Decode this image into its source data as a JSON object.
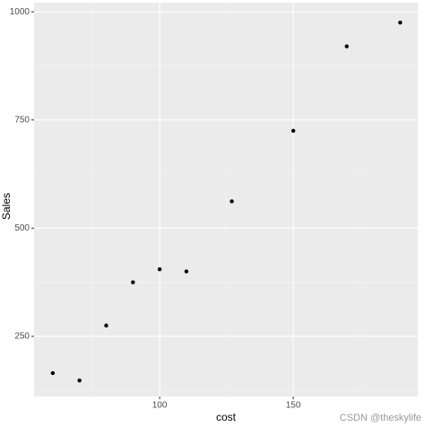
{
  "chart_data": {
    "type": "scatter",
    "x_label": "cost",
    "y_label": "Sales",
    "x": [
      60,
      70,
      80,
      90,
      100,
      110,
      127,
      150,
      170,
      190
    ],
    "values": [
      165,
      148,
      275,
      375,
      405,
      400,
      562,
      725,
      920,
      975
    ],
    "color": "#000000",
    "xlim": [
      53,
      196.6
    ],
    "ylim": [
      111,
      1021
    ],
    "xticks": [
      100,
      150
    ],
    "yticks": [
      250,
      500,
      750,
      1000
    ],
    "minor_xticks": [
      75,
      125,
      175
    ],
    "minor_yticks": [
      125,
      375,
      625,
      875
    ],
    "grid": true,
    "watermark": "CSDN @theskylife"
  }
}
